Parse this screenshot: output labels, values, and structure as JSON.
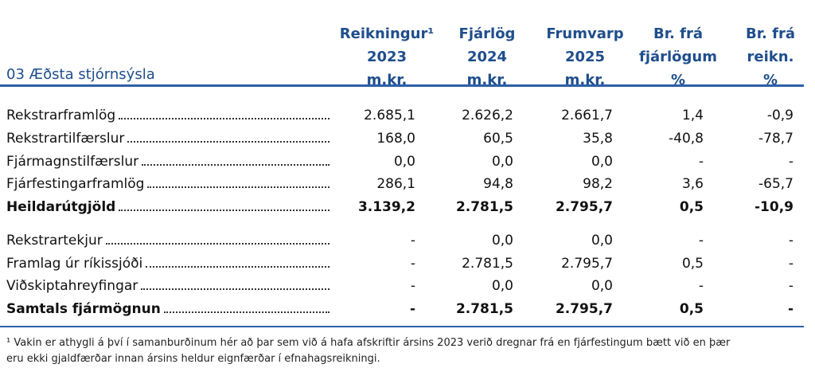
{
  "table": {
    "title": "03 Æðsta stjórnsýsla",
    "columns": [
      [
        "Reikningur¹",
        "2023",
        "m.kr."
      ],
      [
        "Fjárlög",
        "2024",
        "m.kr."
      ],
      [
        "Frumvarp",
        "2025",
        "m.kr."
      ],
      [
        "Br. frá",
        "fjárlögum",
        "%"
      ],
      [
        "Br. frá",
        "reikn.",
        "%"
      ]
    ],
    "sections": [
      {
        "rows": [
          [
            "Rekstrarframlög",
            "2.685,1",
            "2.626,2",
            "2.661,7",
            "1,4",
            "-0,9"
          ],
          [
            "Rekstrartilfærslur",
            "168,0",
            "60,5",
            "35,8",
            "-40,8",
            "-78,7"
          ],
          [
            "Fjármagnstilfærslur",
            "0,0",
            "0,0",
            "0,0",
            "-",
            "-"
          ],
          [
            "Fjárfestingarframlög",
            "286,1",
            "94,8",
            "98,2",
            "3,6",
            "-65,7"
          ]
        ],
        "total": [
          "Heildarútgjöld",
          "3.139,2",
          "2.781,5",
          "2.795,7",
          "0,5",
          "-10,9"
        ]
      },
      {
        "rows": [
          [
            "Rekstrartekjur",
            "-",
            "0,0",
            "0,0",
            "-",
            "-"
          ],
          [
            "Framlag úr ríkissjóði",
            "-",
            "2.781,5",
            "2.795,7",
            "0,5",
            "-"
          ],
          [
            "Viðskiptahreyfingar",
            "-",
            "0,0",
            "0,0",
            "-",
            "-"
          ]
        ],
        "total": [
          "Samtals fjármögnun",
          "-",
          "2.781,5",
          "2.795,7",
          "0,5",
          "-"
        ]
      }
    ],
    "footnote": [
      "¹ Vakin er athygli á því í samanburðinum hér að þar sem við á hafa afskriftir ársins 2023 verið dregnar frá en fjárfestingum bætt við en þær",
      "eru ekki gjaldfærðar innan ársins heldur eignfærðar í efnahagsreikningi."
    ]
  }
}
